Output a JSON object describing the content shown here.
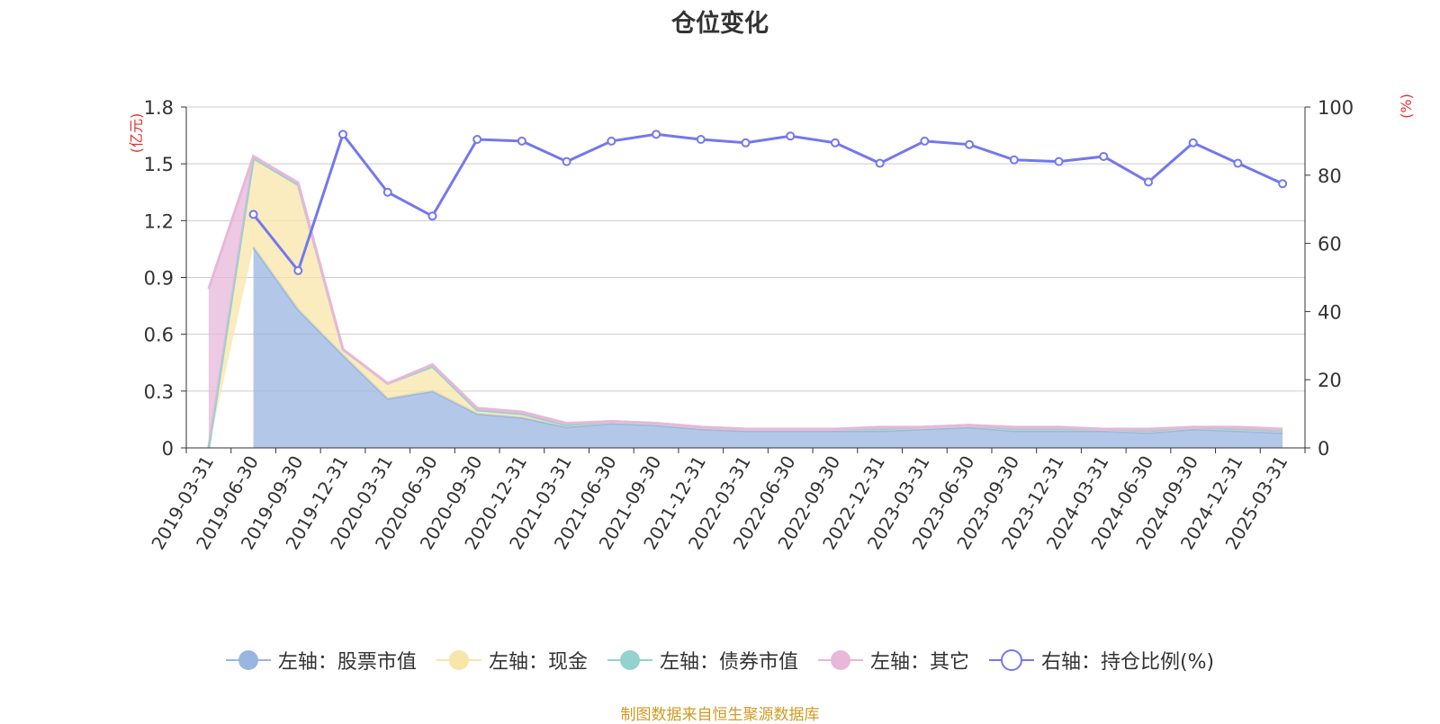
{
  "chart_data": {
    "type": "area",
    "title": "仓位变化",
    "left_axis_unit": "(亿元)",
    "right_axis_unit": "(%)",
    "ylim_left": [
      0,
      1.8
    ],
    "yticks_left": [
      "0",
      "0.3",
      "0.6",
      "0.9",
      "1.2",
      "1.5",
      "1.8"
    ],
    "ylim_right": [
      0,
      100
    ],
    "yticks_right": [
      "0",
      "20",
      "40",
      "60",
      "80",
      "100"
    ],
    "categories": [
      "2019-03-31",
      "2019-06-30",
      "2019-09-30",
      "2019-12-31",
      "2020-03-31",
      "2020-06-30",
      "2020-09-30",
      "2020-12-31",
      "2021-03-31",
      "2021-06-30",
      "2021-09-30",
      "2021-12-31",
      "2022-03-31",
      "2022-06-30",
      "2022-09-30",
      "2022-12-31",
      "2023-03-31",
      "2023-06-30",
      "2023-09-30",
      "2023-12-31",
      "2024-03-31",
      "2024-06-30",
      "2024-09-30",
      "2024-12-31",
      "2025-03-31"
    ],
    "series": [
      {
        "name": "左轴：股票市值",
        "axis": "left",
        "color": "#9ab6e0",
        "values": [
          null,
          1.06,
          0.73,
          0.49,
          0.26,
          0.3,
          0.18,
          0.16,
          0.11,
          0.13,
          0.12,
          0.1,
          0.09,
          0.09,
          0.09,
          0.09,
          0.1,
          0.11,
          0.09,
          0.09,
          0.09,
          0.08,
          0.1,
          0.09,
          0.08
        ]
      },
      {
        "name": "左轴：现金",
        "axis": "left",
        "color": "#f8e5a8",
        "values": [
          0.0,
          0.47,
          0.66,
          0.03,
          0.08,
          0.13,
          0.02,
          0.02,
          0.01,
          0.01,
          0.01,
          0.01,
          0.01,
          0.01,
          0.01,
          0.01,
          0.01,
          0.01,
          0.01,
          0.01,
          0.01,
          0.01,
          0.01,
          0.01,
          0.01
        ]
      },
      {
        "name": "左轴：债券市值",
        "axis": "left",
        "color": "#93d2cf",
        "values": [
          0,
          0,
          0,
          0,
          0,
          0,
          0,
          0,
          0,
          0,
          0,
          0,
          0,
          0,
          0,
          0,
          0,
          0,
          0,
          0,
          0,
          0,
          0,
          0,
          0
        ]
      },
      {
        "name": "左轴：其它",
        "axis": "left",
        "color": "#e8b7d9",
        "values": [
          0.84,
          0.01,
          0.01,
          0.0,
          0.0,
          0.01,
          0.01,
          0.01,
          0.01,
          0.0,
          0.0,
          0.0,
          0.0,
          0.0,
          0.0,
          0.01,
          0.0,
          0.0,
          0.01,
          0.01,
          0.0,
          0.01,
          0.0,
          0.01,
          0.01
        ]
      },
      {
        "name": "右轴：持仓比例(%)",
        "axis": "right",
        "color": "#7378ee",
        "values": [
          null,
          68.5,
          52.0,
          92.0,
          75.0,
          68.0,
          90.5,
          90.0,
          84.0,
          90.0,
          92.0,
          90.5,
          89.5,
          91.5,
          89.5,
          83.5,
          90.0,
          89.0,
          84.5,
          84.0,
          85.5,
          78.0,
          89.5,
          83.5,
          77.5
        ]
      }
    ],
    "legend_position": "bottom",
    "grid": true
  },
  "source_note": "制图数据来自恒生聚源数据库"
}
